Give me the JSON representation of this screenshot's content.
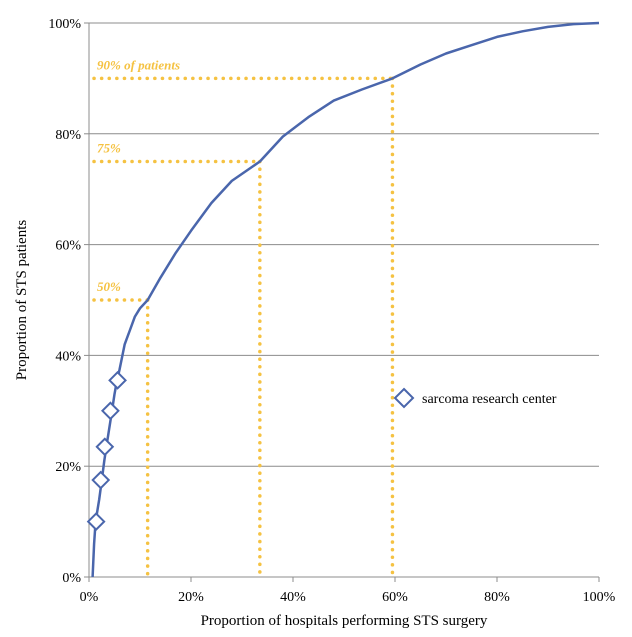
{
  "chart_data": {
    "type": "line",
    "title": "",
    "xlabel": "Proportion of hospitals performing STS surgery",
    "ylabel": "Proportion of STS patients",
    "xlim": [
      0,
      100
    ],
    "ylim": [
      0,
      100
    ],
    "x_ticks": [
      "0%",
      "20%",
      "40%",
      "60%",
      "80%",
      "100%"
    ],
    "y_ticks": [
      "0%",
      "20%",
      "40%",
      "60%",
      "80%",
      "100%"
    ],
    "grid": "horizontal",
    "colors": {
      "curve": "#4a66ac",
      "reference": "#f5c242",
      "grid": "#8c8c8c"
    },
    "series": [
      {
        "type": "line",
        "x": [
          0.7,
          1,
          1.3,
          2,
          2.5,
          3,
          3.5,
          4,
          4.5,
          5,
          5.5,
          6,
          7,
          8,
          9,
          10,
          11.5,
          14,
          17,
          20,
          24,
          28,
          33.5,
          38,
          43,
          48,
          53.5,
          59.5,
          65,
          70,
          75,
          80,
          85,
          90,
          95,
          100
        ],
        "y": [
          0,
          6,
          10,
          14,
          17.5,
          21,
          24,
          27,
          30,
          33,
          35.5,
          37.5,
          42,
          44.5,
          47,
          48.5,
          50,
          54,
          58.5,
          62.5,
          67.5,
          71.5,
          75,
          79.5,
          83,
          86,
          88,
          90,
          92.5,
          94.5,
          96,
          97.5,
          98.5,
          99.3,
          99.8,
          100
        ]
      },
      {
        "name": "sarcoma research center",
        "type": "scatter",
        "marker": "diamond",
        "x": [
          1.4,
          2.3,
          3.1,
          4.2,
          5.6
        ],
        "y": [
          10,
          17.5,
          23.5,
          30,
          35.5
        ]
      }
    ],
    "reference_lines": [
      {
        "label": "90% of patients",
        "x": 59.5,
        "y": 90
      },
      {
        "label": "75%",
        "x": 33.5,
        "y": 75
      },
      {
        "label": "50%",
        "x": 11.5,
        "y": 50
      }
    ],
    "legend": {
      "position": "right",
      "entries": [
        "sarcoma research center"
      ]
    }
  }
}
